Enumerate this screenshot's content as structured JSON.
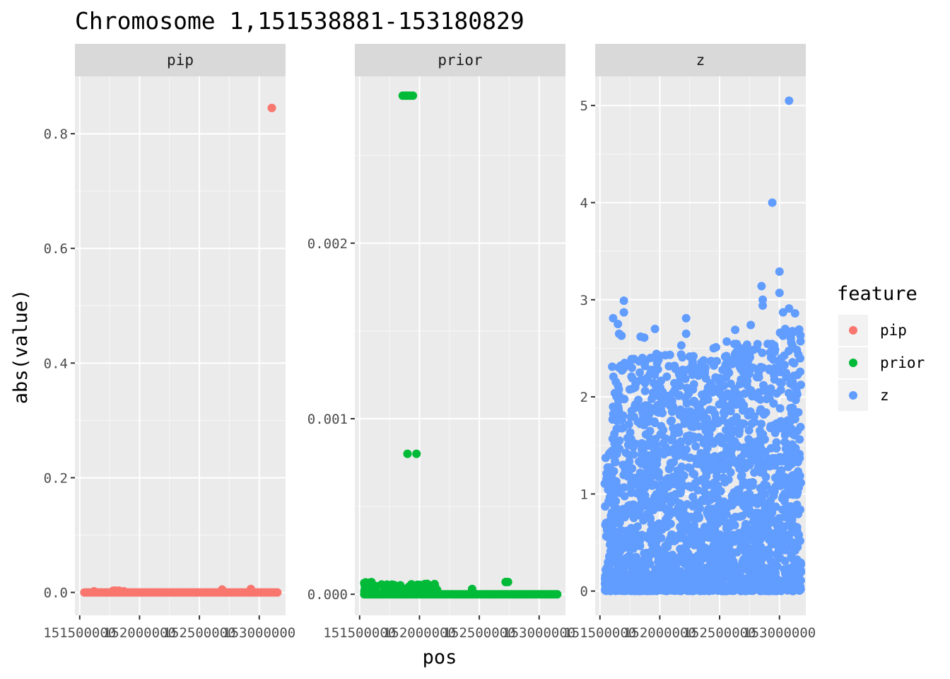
{
  "chart_data": {
    "type": "scatter",
    "title": "Chromosome 1,151538881-153180829",
    "xlabel": "pos",
    "ylabel": "abs(value)",
    "xlim": [
      151538881,
      153180829
    ],
    "x_ticks": [
      151500000,
      152000000,
      152500000,
      153000000
    ],
    "x_tick_labels": [
      "151500000",
      "152000000",
      "152500000",
      "153000000"
    ],
    "grid": true,
    "legend": {
      "title": "feature",
      "placement": "right",
      "entries": [
        {
          "label": "pip",
          "color": "#F8766D"
        },
        {
          "label": "prior",
          "color": "#00BA38"
        },
        {
          "label": "z",
          "color": "#619CFF"
        }
      ]
    },
    "panels": [
      {
        "strip": "pip",
        "color": "#F8766D",
        "ylim": [
          -0.04,
          0.9
        ],
        "y_ticks": [
          0.0,
          0.2,
          0.4,
          0.6,
          0.8
        ],
        "y_tick_labels": [
          "0.0",
          "0.2",
          "0.4",
          "0.6",
          "0.8"
        ],
        "points": [
          {
            "x": 152690000,
            "y": 0.005
          },
          {
            "x": 152930000,
            "y": 0.006
          },
          {
            "x": 153105000,
            "y": 0.845
          },
          {
            "x": 151780000,
            "y": 0.003
          },
          {
            "x": 151800000,
            "y": 0.003
          },
          {
            "x": 151830000,
            "y": 0.003
          },
          {
            "x": 151870000,
            "y": 0.002
          },
          {
            "x": 151620000,
            "y": 0.002
          }
        ],
        "baseline": {
          "from": 151538881,
          "to": 153180829,
          "y": 0.0
        }
      },
      {
        "strip": "prior",
        "color": "#00BA38",
        "ylim": [
          -0.00012,
          0.00295
        ],
        "y_ticks": [
          0.0,
          0.001,
          0.002
        ],
        "y_tick_labels": [
          "0.000",
          "0.001",
          "0.002"
        ],
        "points": [
          {
            "x": 151860000,
            "y": 0.00284
          },
          {
            "x": 151880000,
            "y": 0.00284
          },
          {
            "x": 151900000,
            "y": 0.00284
          },
          {
            "x": 151920000,
            "y": 0.00284
          },
          {
            "x": 151945000,
            "y": 0.00284
          },
          {
            "x": 151900000,
            "y": 0.0008
          },
          {
            "x": 151975000,
            "y": 0.0008
          },
          {
            "x": 152440000,
            "y": 3e-05
          },
          {
            "x": 152720000,
            "y": 7e-05
          },
          {
            "x": 152740000,
            "y": 7e-05
          }
        ],
        "band": {
          "from": 151538881,
          "to": 151600000,
          "ymax": 7e-05
        },
        "band2": {
          "from": 151600000,
          "to": 152150000,
          "ymax": 6e-05
        },
        "baseline": {
          "from": 151538881,
          "to": 153180829,
          "y": 0.0
        }
      },
      {
        "strip": "z",
        "color": "#619CFF",
        "ylim": [
          -0.25,
          5.3
        ],
        "y_ticks": [
          0,
          1,
          2,
          3,
          4,
          5
        ],
        "y_tick_labels": [
          "0",
          "1",
          "2",
          "3",
          "4",
          "5"
        ],
        "points": [
          {
            "x": 153080000,
            "y": 5.05
          },
          {
            "x": 152940000,
            "y": 4.0
          },
          {
            "x": 153000000,
            "y": 3.29
          },
          {
            "x": 152850000,
            "y": 3.14
          },
          {
            "x": 153000000,
            "y": 3.07
          },
          {
            "x": 152860000,
            "y": 3.0
          },
          {
            "x": 152860000,
            "y": 2.94
          },
          {
            "x": 151700000,
            "y": 2.99
          },
          {
            "x": 151700000,
            "y": 2.87
          },
          {
            "x": 153080000,
            "y": 2.91
          },
          {
            "x": 153030000,
            "y": 2.87
          },
          {
            "x": 153130000,
            "y": 2.86
          },
          {
            "x": 151610000,
            "y": 2.81
          },
          {
            "x": 152220000,
            "y": 2.81
          },
          {
            "x": 151650000,
            "y": 2.75
          },
          {
            "x": 152760000,
            "y": 2.74
          },
          {
            "x": 151960000,
            "y": 2.7
          },
          {
            "x": 152630000,
            "y": 2.69
          },
          {
            "x": 151660000,
            "y": 2.65
          },
          {
            "x": 152220000,
            "y": 2.65
          },
          {
            "x": 153120000,
            "y": 2.67
          },
          {
            "x": 151680000,
            "y": 2.63
          },
          {
            "x": 151840000,
            "y": 2.62
          },
          {
            "x": 151870000,
            "y": 2.61
          },
          {
            "x": 152560000,
            "y": 2.57
          },
          {
            "x": 152180000,
            "y": 2.53
          },
          {
            "x": 152450000,
            "y": 2.5
          },
          {
            "x": 152470000,
            "y": 2.51
          }
        ],
        "cloud": [
          {
            "from": 151540000,
            "to": 151600000,
            "ymax": 1.5
          },
          {
            "from": 151600000,
            "to": 152000000,
            "ymax": 2.45
          },
          {
            "from": 152000000,
            "to": 152600000,
            "ymax": 2.45
          },
          {
            "from": 152600000,
            "to": 153000000,
            "ymax": 2.55
          },
          {
            "from": 153000000,
            "to": 153180829,
            "ymax": 2.7
          }
        ]
      }
    ]
  }
}
